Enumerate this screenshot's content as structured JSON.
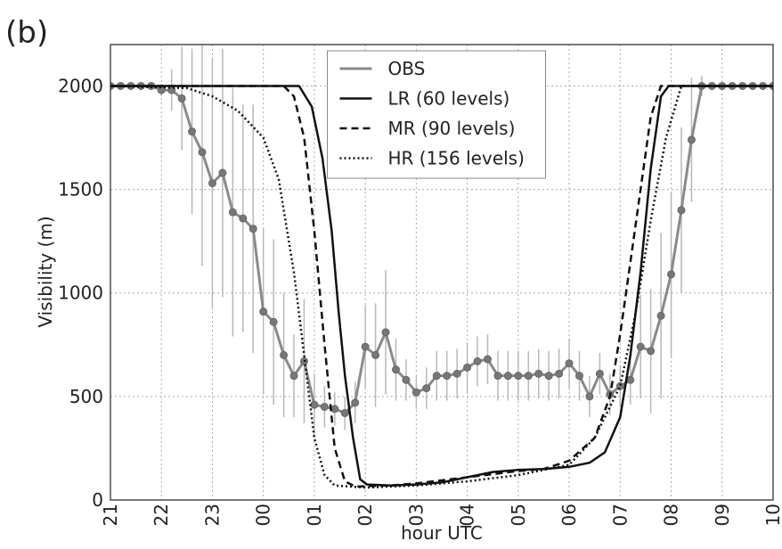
{
  "chart_data": {
    "type": "line",
    "panel_label": "(b)",
    "x_label": "hour UTC",
    "y_label": "Visibility (m)",
    "xlim": [
      21,
      34
    ],
    "ylim": [
      0,
      2200
    ],
    "xticks": [
      21,
      22,
      23,
      {
        "value": 24,
        "label": "00"
      },
      {
        "value": 25,
        "label": "01"
      },
      {
        "value": 26,
        "label": "02"
      },
      {
        "value": 27,
        "label": "03"
      },
      {
        "value": 28,
        "label": "04"
      },
      {
        "value": 29,
        "label": "05"
      },
      {
        "value": 30,
        "label": "06"
      },
      {
        "value": 31,
        "label": "07"
      },
      {
        "value": 32,
        "label": "08"
      },
      {
        "value": 33,
        "label": "09"
      },
      {
        "value": 34,
        "label": "10"
      }
    ],
    "yticks": [
      0,
      500,
      1000,
      1500,
      2000
    ],
    "grid": true,
    "legend": "upper center",
    "series": [
      {
        "name": "OBS",
        "color": "#8a8a8a",
        "dash": "solid",
        "marker": true,
        "x": [
          21.0,
          21.2,
          21.4,
          21.6,
          21.8,
          22.0,
          22.2,
          22.4,
          22.6,
          22.8,
          23.0,
          23.2,
          23.4,
          23.6,
          23.8,
          24.0,
          24.2,
          24.4,
          24.6,
          24.8,
          25.0,
          25.2,
          25.4,
          25.6,
          25.8,
          26.0,
          26.2,
          26.4,
          26.6,
          26.8,
          27.0,
          27.2,
          27.4,
          27.6,
          27.8,
          28.0,
          28.2,
          28.4,
          28.6,
          28.8,
          29.0,
          29.2,
          29.4,
          29.6,
          29.8,
          30.0,
          30.2,
          30.4,
          30.6,
          30.8,
          31.0,
          31.2,
          31.4,
          31.6,
          31.8,
          32.0,
          32.2,
          32.4,
          32.6,
          32.8,
          33.0,
          33.2,
          33.4,
          33.6,
          33.8,
          34.0
        ],
        "values": [
          2000,
          2000,
          2000,
          2000,
          2000,
          1980,
          1980,
          1940,
          1780,
          1680,
          1530,
          1580,
          1390,
          1360,
          1310,
          910,
          860,
          700,
          600,
          670,
          460,
          450,
          440,
          420,
          470,
          740,
          700,
          810,
          630,
          580,
          520,
          540,
          600,
          600,
          610,
          640,
          670,
          680,
          600,
          600,
          600,
          600,
          610,
          600,
          610,
          660,
          600,
          500,
          610,
          510,
          550,
          580,
          740,
          720,
          890,
          1090,
          1400,
          1740,
          2000,
          2000,
          2000,
          2000,
          2000,
          2000,
          2000,
          2000
        ],
        "errors": [
          0,
          0,
          0,
          0,
          0,
          30,
          100,
          250,
          400,
          550,
          600,
          600,
          600,
          550,
          600,
          400,
          400,
          300,
          200,
          300,
          150,
          100,
          80,
          80,
          100,
          200,
          250,
          300,
          150,
          100,
          80,
          100,
          120,
          120,
          120,
          120,
          120,
          120,
          120,
          120,
          120,
          120,
          120,
          120,
          120,
          120,
          120,
          100,
          100,
          100,
          100,
          120,
          250,
          300,
          400,
          400,
          400,
          300,
          50,
          0,
          0,
          0,
          0,
          0,
          0,
          0
        ]
      },
      {
        "name": "LR (60 levels)",
        "color": "#111111",
        "dash": "solid",
        "marker": false,
        "x": [
          21,
          24.7,
          24.95,
          25.16,
          25.34,
          25.48,
          25.6,
          25.76,
          25.9,
          26.03,
          26.5,
          27,
          27.5,
          28,
          28.5,
          29,
          29.5,
          30,
          30.4,
          30.7,
          31,
          31.2,
          31.4,
          31.6,
          31.8,
          31.95,
          34
        ],
        "values": [
          2000,
          2000,
          1900,
          1650,
          1300,
          900,
          600,
          300,
          100,
          75,
          70,
          75,
          85,
          110,
          135,
          145,
          150,
          160,
          180,
          230,
          400,
          700,
          1100,
          1600,
          1950,
          2000,
          2000
        ]
      },
      {
        "name": "MR (90 levels)",
        "color": "#111111",
        "dash": "dashed",
        "marker": false,
        "x": [
          21,
          24.4,
          24.6,
          24.8,
          25.0,
          25.2,
          25.4,
          25.6,
          25.8,
          26.5,
          27,
          28,
          29,
          29.5,
          30,
          30.5,
          30.8,
          31.0,
          31.2,
          31.4,
          31.6,
          31.8,
          34
        ],
        "values": [
          2000,
          2000,
          1950,
          1750,
          1300,
          750,
          250,
          90,
          65,
          70,
          80,
          110,
          140,
          150,
          190,
          300,
          500,
          800,
          1150,
          1500,
          1850,
          2000,
          2000
        ]
      },
      {
        "name": "HR (156 levels)",
        "color": "#111111",
        "dash": "dotted",
        "marker": false,
        "x": [
          21,
          22.5,
          23.0,
          23.5,
          24.0,
          24.3,
          24.6,
          24.8,
          25.0,
          25.2,
          25.4,
          26,
          27,
          28,
          29,
          30,
          30.5,
          31.0,
          31.3,
          31.6,
          31.9,
          32.2,
          34
        ],
        "values": [
          2000,
          1990,
          1950,
          1880,
          1750,
          1550,
          1100,
          700,
          300,
          120,
          70,
          60,
          70,
          90,
          120,
          170,
          300,
          550,
          900,
          1350,
          1750,
          2000,
          2000
        ]
      }
    ]
  }
}
